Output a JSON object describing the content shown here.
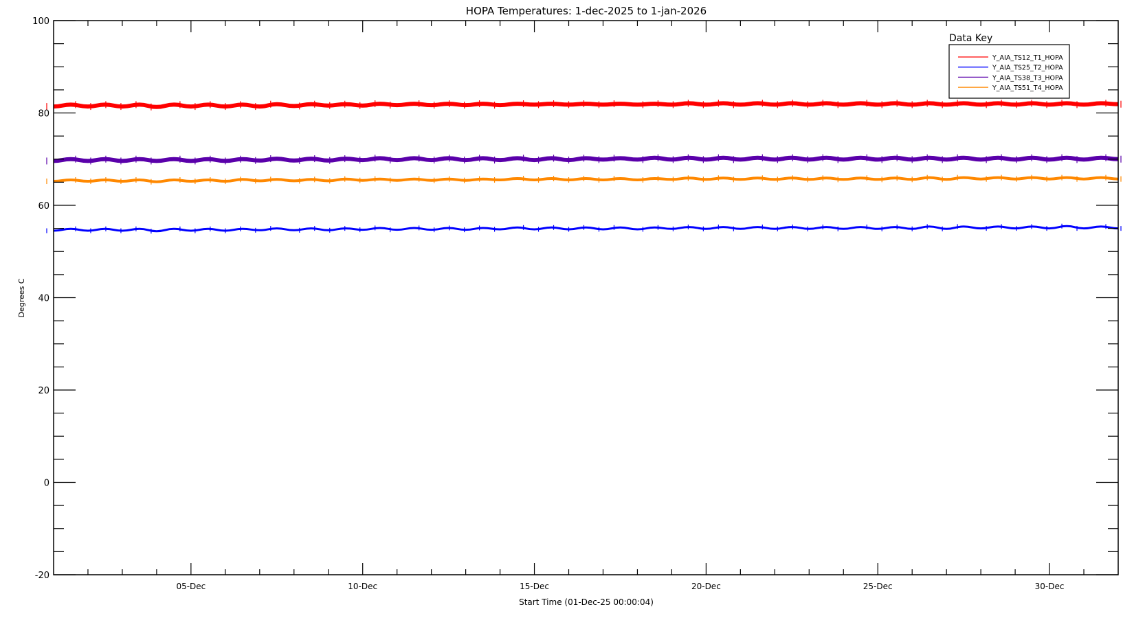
{
  "chart_data": {
    "type": "line",
    "title": "HOPA Temperatures: 1-dec-2025 to 1-jan-2026",
    "xlabel": "Start Time (01-Dec-25 00:00:04)",
    "ylabel": "Degrees C",
    "xlim": [
      "2025-12-01",
      "2026-01-01"
    ],
    "ylim": [
      -20,
      100
    ],
    "yticks": [
      100,
      80,
      60,
      40,
      20,
      0,
      -20
    ],
    "xticks": [
      {
        "date": "2025-12-05",
        "label": "05-Dec"
      },
      {
        "date": "2025-12-10",
        "label": "10-Dec"
      },
      {
        "date": "2025-12-15",
        "label": "15-Dec"
      },
      {
        "date": "2025-12-20",
        "label": "20-Dec"
      },
      {
        "date": "2025-12-25",
        "label": "25-Dec"
      },
      {
        "date": "2025-12-30",
        "label": "30-Dec"
      }
    ],
    "grid": false,
    "legend": {
      "title": "Data Key",
      "placement": "top-right"
    },
    "sample_start": "2025-12-01 00:00",
    "sample_interval_hours": 12,
    "series": [
      {
        "name": "Y_AIA_TS12_T1_HOPA",
        "color": "#ff0000",
        "values": [
          81.4,
          81.8,
          81.4,
          81.8,
          81.4,
          81.8,
          81.3,
          81.8,
          81.4,
          81.8,
          81.4,
          81.8,
          81.4,
          81.9,
          81.5,
          81.9,
          81.6,
          81.9,
          81.6,
          82.0,
          81.7,
          82.0,
          81.7,
          82.0,
          81.7,
          82.0,
          81.7,
          82.0,
          81.8,
          82.0,
          81.8,
          82.0,
          81.8,
          82.0,
          81.8,
          82.0,
          81.8,
          82.1,
          81.8,
          82.1,
          81.8,
          82.1,
          81.8,
          82.1,
          81.8,
          82.1,
          81.8,
          82.1,
          81.8,
          82.1,
          81.8,
          82.1,
          81.8,
          82.1,
          81.8,
          82.1,
          81.8,
          82.1,
          81.8,
          82.1,
          81.8,
          82.1,
          81.9
        ]
      },
      {
        "name": "Y_AIA_TS25_T2_HOPA",
        "color": "#0000ff",
        "values": [
          54.5,
          54.9,
          54.5,
          54.9,
          54.5,
          54.9,
          54.4,
          54.9,
          54.5,
          54.9,
          54.5,
          54.9,
          54.6,
          55.0,
          54.6,
          55.0,
          54.6,
          55.0,
          54.7,
          55.1,
          54.7,
          55.1,
          54.7,
          55.1,
          54.7,
          55.1,
          54.8,
          55.2,
          54.8,
          55.2,
          54.8,
          55.2,
          54.8,
          55.2,
          54.8,
          55.2,
          54.9,
          55.3,
          54.9,
          55.3,
          54.9,
          55.3,
          54.9,
          55.3,
          54.9,
          55.3,
          54.9,
          55.3,
          54.9,
          55.3,
          54.9,
          55.4,
          54.9,
          55.4,
          55.0,
          55.4,
          55.0,
          55.4,
          55.0,
          55.5,
          55.0,
          55.4,
          55.0
        ]
      },
      {
        "name": "Y_AIA_TS38_T3_HOPA",
        "color": "#5a00aa",
        "values": [
          69.6,
          70.0,
          69.6,
          70.0,
          69.6,
          70.0,
          69.6,
          70.0,
          69.6,
          70.0,
          69.6,
          70.0,
          69.7,
          70.1,
          69.7,
          70.1,
          69.7,
          70.1,
          69.8,
          70.2,
          69.8,
          70.2,
          69.8,
          70.2,
          69.8,
          70.2,
          69.8,
          70.2,
          69.8,
          70.2,
          69.8,
          70.2,
          69.9,
          70.2,
          69.9,
          70.3,
          69.9,
          70.3,
          69.9,
          70.3,
          69.9,
          70.3,
          69.9,
          70.3,
          69.9,
          70.3,
          69.9,
          70.3,
          69.9,
          70.3,
          69.9,
          70.3,
          69.9,
          70.3,
          69.9,
          70.3,
          69.9,
          70.3,
          69.9,
          70.3,
          69.9,
          70.3,
          70.0
        ]
      },
      {
        "name": "Y_AIA_TS51_T4_HOPA",
        "color": "#ff8800",
        "values": [
          65.2,
          65.5,
          65.2,
          65.5,
          65.2,
          65.5,
          65.1,
          65.5,
          65.2,
          65.5,
          65.2,
          65.6,
          65.3,
          65.6,
          65.3,
          65.6,
          65.3,
          65.7,
          65.4,
          65.7,
          65.4,
          65.7,
          65.4,
          65.7,
          65.4,
          65.7,
          65.5,
          65.8,
          65.5,
          65.8,
          65.5,
          65.8,
          65.5,
          65.8,
          65.5,
          65.8,
          65.6,
          65.9,
          65.6,
          65.9,
          65.6,
          65.9,
          65.6,
          65.9,
          65.6,
          65.9,
          65.6,
          65.9,
          65.6,
          65.9,
          65.6,
          66.0,
          65.6,
          66.0,
          65.7,
          66.0,
          65.7,
          66.0,
          65.7,
          66.0,
          65.7,
          66.0,
          65.7
        ]
      }
    ]
  }
}
